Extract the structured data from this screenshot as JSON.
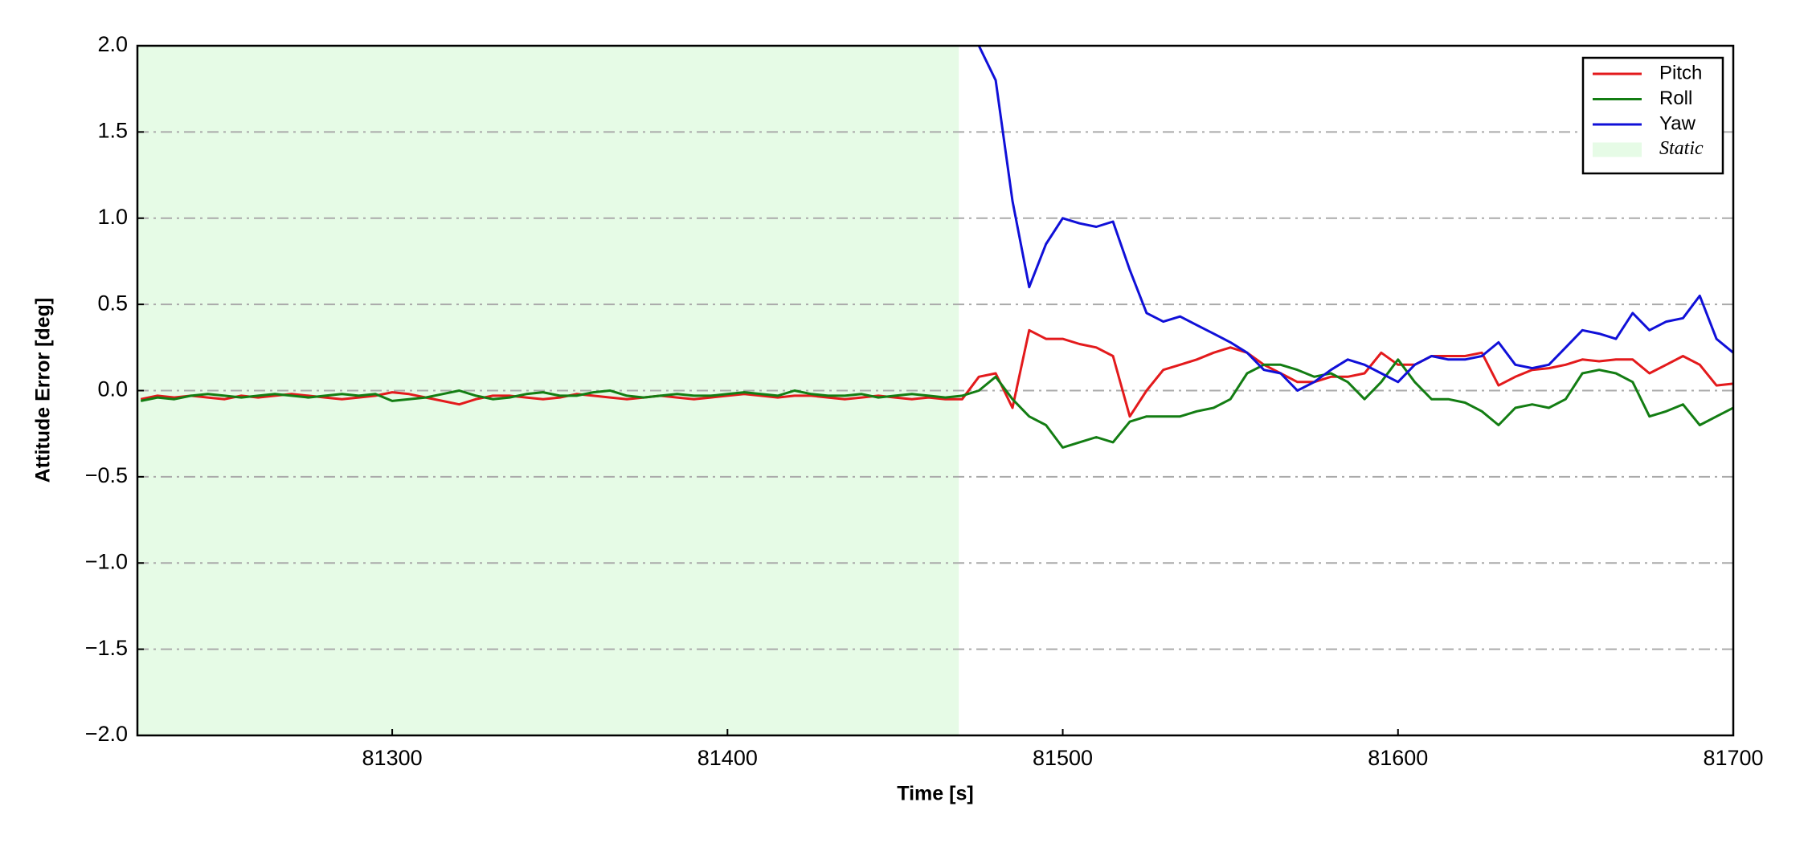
{
  "chart_data": {
    "type": "line",
    "xlabel": "Time [s]",
    "ylabel": "Attitude Error [deg]",
    "xlim": [
      81224,
      81700
    ],
    "xticks": [
      81300,
      81400,
      81500,
      81600,
      81700
    ],
    "ylim": [
      -2,
      2
    ],
    "yticks": [
      {
        "value": -2,
        "label": "−2.0"
      },
      {
        "value": -1.5,
        "label": "−1.5"
      },
      {
        "value": -1,
        "label": "−1.0"
      },
      {
        "value": -0.5,
        "label": "−0.5"
      },
      {
        "value": 0,
        "label": "0.0"
      },
      0.5,
      {
        "value": 1,
        "label": "1.0"
      },
      1.5,
      {
        "value": 2,
        "label": "2.0"
      }
    ],
    "grid": true,
    "legend": "upper right",
    "shaded_region": {
      "name": "Static",
      "color": "#e6fbe6",
      "x": [
        81224,
        81469
      ]
    },
    "x": [
      81225,
      81230,
      81235,
      81240,
      81245,
      81250,
      81255,
      81260,
      81265,
      81270,
      81275,
      81280,
      81285,
      81290,
      81295,
      81300,
      81305,
      81310,
      81315,
      81320,
      81325,
      81330,
      81335,
      81340,
      81345,
      81350,
      81355,
      81360,
      81365,
      81370,
      81375,
      81380,
      81385,
      81390,
      81395,
      81400,
      81405,
      81410,
      81415,
      81420,
      81425,
      81430,
      81435,
      81440,
      81445,
      81450,
      81455,
      81460,
      81465,
      81470,
      81475,
      81480,
      81485,
      81490,
      81495,
      81500,
      81505,
      81510,
      81515,
      81520,
      81525,
      81530,
      81535,
      81540,
      81545,
      81550,
      81555,
      81560,
      81565,
      81570,
      81575,
      81580,
      81585,
      81590,
      81595,
      81600,
      81605,
      81610,
      81615,
      81620,
      81625,
      81630,
      81635,
      81640,
      81645,
      81650,
      81655,
      81660,
      81665,
      81670,
      81675,
      81680,
      81685,
      81690,
      81695,
      81700
    ],
    "series": [
      {
        "name": "Pitch",
        "color": "#e31a1c",
        "values": [
          -0.05,
          -0.03,
          -0.04,
          -0.03,
          -0.04,
          -0.05,
          -0.03,
          -0.04,
          -0.03,
          -0.02,
          -0.03,
          -0.04,
          -0.05,
          -0.04,
          -0.03,
          -0.01,
          -0.02,
          -0.04,
          -0.06,
          -0.08,
          -0.05,
          -0.03,
          -0.03,
          -0.04,
          -0.05,
          -0.04,
          -0.02,
          -0.03,
          -0.04,
          -0.05,
          -0.04,
          -0.03,
          -0.04,
          -0.05,
          -0.04,
          -0.03,
          -0.02,
          -0.03,
          -0.04,
          -0.03,
          -0.03,
          -0.04,
          -0.05,
          -0.04,
          -0.03,
          -0.04,
          -0.05,
          -0.04,
          -0.05,
          -0.05,
          0.08,
          0.1,
          -0.1,
          0.35,
          0.3,
          0.3,
          0.27,
          0.25,
          0.2,
          -0.15,
          0.0,
          0.12,
          0.15,
          0.18,
          0.22,
          0.25,
          0.22,
          0.15,
          0.1,
          0.05,
          0.05,
          0.08,
          0.08,
          0.1,
          0.22,
          0.15,
          0.15,
          0.2,
          0.2,
          0.2,
          0.22,
          0.03,
          0.08,
          0.12,
          0.13,
          0.15,
          0.18,
          0.17,
          0.18,
          0.18,
          0.1,
          0.15,
          0.2,
          0.15,
          0.03,
          0.04
        ]
      },
      {
        "name": "Roll",
        "color": "#137d13",
        "values": [
          -0.06,
          -0.04,
          -0.05,
          -0.03,
          -0.02,
          -0.03,
          -0.04,
          -0.03,
          -0.02,
          -0.03,
          -0.04,
          -0.03,
          -0.02,
          -0.03,
          -0.02,
          -0.06,
          -0.05,
          -0.04,
          -0.02,
          0.0,
          -0.03,
          -0.05,
          -0.04,
          -0.02,
          -0.01,
          -0.03,
          -0.03,
          -0.01,
          0.0,
          -0.03,
          -0.04,
          -0.03,
          -0.02,
          -0.03,
          -0.03,
          -0.02,
          -0.01,
          -0.02,
          -0.03,
          0.0,
          -0.02,
          -0.03,
          -0.03,
          -0.02,
          -0.04,
          -0.03,
          -0.02,
          -0.03,
          -0.04,
          -0.03,
          0.0,
          0.08,
          -0.05,
          -0.15,
          -0.2,
          -0.33,
          -0.3,
          -0.27,
          -0.3,
          -0.18,
          -0.15,
          -0.15,
          -0.15,
          -0.12,
          -0.1,
          -0.05,
          0.1,
          0.15,
          0.15,
          0.12,
          0.08,
          0.1,
          0.05,
          -0.05,
          0.05,
          0.18,
          0.05,
          -0.05,
          -0.05,
          -0.07,
          -0.12,
          -0.2,
          -0.1,
          -0.08,
          -0.1,
          -0.05,
          0.1,
          0.12,
          0.1,
          0.05,
          -0.15,
          -0.12,
          -0.08,
          -0.2,
          -0.15,
          -0.1
        ]
      },
      {
        "name": "Yaw",
        "color": "#1010d8",
        "values": [
          null,
          null,
          null,
          null,
          null,
          null,
          null,
          null,
          null,
          null,
          null,
          null,
          null,
          null,
          null,
          null,
          null,
          null,
          null,
          null,
          null,
          null,
          null,
          null,
          null,
          null,
          null,
          null,
          null,
          null,
          null,
          null,
          null,
          null,
          null,
          null,
          null,
          null,
          null,
          null,
          null,
          null,
          null,
          null,
          null,
          null,
          null,
          null,
          null,
          null,
          2.0,
          1.8,
          1.1,
          0.6,
          0.85,
          1.0,
          0.97,
          0.95,
          0.98,
          0.7,
          0.45,
          0.4,
          0.43,
          0.38,
          0.33,
          0.28,
          0.22,
          0.12,
          0.1,
          0.0,
          0.05,
          0.12,
          0.18,
          0.15,
          0.1,
          0.05,
          0.15,
          0.2,
          0.18,
          0.18,
          0.2,
          0.28,
          0.15,
          0.13,
          0.15,
          0.25,
          0.35,
          0.33,
          0.3,
          0.45,
          0.35,
          0.4,
          0.42,
          0.55,
          0.3,
          0.22
        ]
      }
    ]
  }
}
